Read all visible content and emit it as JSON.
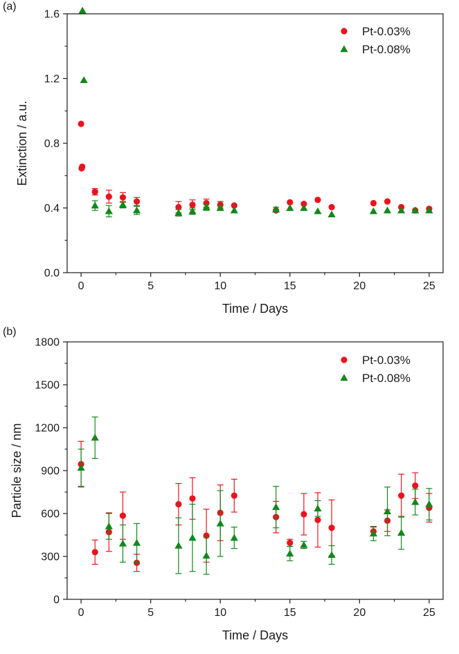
{
  "colors": {
    "pt003": "#e8141e",
    "pt008": "#13871b",
    "axis": "#1a1a1a"
  },
  "chart_data": [
    {
      "type": "scatter",
      "panel_label": "(a)",
      "title": "",
      "xlabel": "Time / Days",
      "ylabel": "Extinction / a.u.",
      "xlim": [
        -1,
        26
      ],
      "ylim": [
        0,
        1.6
      ],
      "xticks": [
        0,
        5,
        10,
        15,
        20,
        25
      ],
      "xtick_labels": [
        "0",
        "5",
        "10",
        "15",
        "20",
        "25"
      ],
      "yticks": [
        0,
        0.4,
        0.8,
        1.2,
        1.6
      ],
      "ytick_labels": [
        "0.0",
        "0.4",
        "0.8",
        "1.2",
        "1.6"
      ],
      "legend_position": "top-right",
      "series": [
        {
          "name": "Pt-0.03%",
          "marker": "circle",
          "color": "#e8141e",
          "x": [
            0,
            0.04,
            0.08,
            1,
            2,
            3,
            4,
            7,
            8,
            9,
            10,
            11,
            14,
            15,
            16,
            17,
            18,
            21,
            22,
            23,
            24,
            25
          ],
          "y": [
            0.92,
            0.645,
            0.655,
            0.5,
            0.47,
            0.465,
            0.44,
            0.405,
            0.42,
            0.43,
            0.42,
            0.415,
            0.385,
            0.435,
            0.425,
            0.45,
            0.405,
            0.43,
            0.44,
            0.405,
            0.385,
            0.395
          ],
          "err": [
            0,
            0,
            0,
            0.02,
            0.04,
            0.03,
            0.025,
            0.035,
            0.03,
            0.025,
            0.02,
            0,
            0,
            0,
            0,
            0,
            0,
            0,
            0,
            0,
            0,
            0
          ]
        },
        {
          "name": "Pt-0.08%",
          "marker": "triangle",
          "color": "#13871b",
          "x": [
            0.1,
            0.2,
            1,
            2,
            3,
            4,
            7,
            8,
            9,
            10,
            11,
            14,
            15,
            16,
            17,
            18,
            21,
            22,
            23,
            24,
            25
          ],
          "y": [
            1.62,
            1.19,
            0.415,
            0.38,
            0.42,
            0.385,
            0.37,
            0.38,
            0.405,
            0.4,
            0.385,
            0.39,
            0.4,
            0.4,
            0.38,
            0.36,
            0.38,
            0.385,
            0.385,
            0.385,
            0.385
          ],
          "err": [
            0,
            0,
            0.03,
            0.035,
            0.02,
            0.025,
            0.02,
            0.02,
            0.02,
            0.015,
            0,
            0.015,
            0,
            0,
            0,
            0,
            0,
            0,
            0,
            0,
            0
          ]
        }
      ]
    },
    {
      "type": "scatter",
      "panel_label": "(b)",
      "title": "",
      "xlabel": "Time / Days",
      "ylabel": "Particle size / nm",
      "xlim": [
        -1,
        26
      ],
      "ylim": [
        0,
        1800
      ],
      "xticks": [
        0,
        5,
        10,
        15,
        20,
        25
      ],
      "xtick_labels": [
        "0",
        "5",
        "10",
        "15",
        "20",
        "25"
      ],
      "yticks": [
        0,
        300,
        600,
        900,
        1200,
        1500,
        1800
      ],
      "ytick_labels": [
        "0",
        "300",
        "600",
        "900",
        "1200",
        "1500",
        "1800"
      ],
      "legend_position": "top-right",
      "series": [
        {
          "name": "Pt-0.03%",
          "marker": "circle",
          "color": "#e8141e",
          "x": [
            0,
            1,
            2,
            3,
            4,
            7,
            8,
            9,
            10,
            11,
            14,
            15,
            16,
            17,
            18,
            21,
            22,
            23,
            24,
            25
          ],
          "y": [
            945,
            330,
            470,
            585,
            255,
            665,
            705,
            445,
            605,
            725,
            575,
            395,
            595,
            555,
            500,
            475,
            550,
            725,
            795,
            640
          ],
          "err": [
            160,
            85,
            135,
            165,
            60,
            145,
            145,
            185,
            195,
            115,
            110,
            25,
            145,
            190,
            195,
            30,
            75,
            150,
            90,
            100
          ]
        },
        {
          "name": "Pt-0.08%",
          "marker": "triangle",
          "color": "#13871b",
          "x": [
            0,
            1,
            2,
            3,
            4,
            7,
            8,
            9,
            10,
            11,
            14,
            15,
            16,
            17,
            18,
            21,
            22,
            23,
            24,
            25
          ],
          "y": [
            920,
            1130,
            510,
            390,
            395,
            375,
            430,
            305,
            530,
            430,
            645,
            320,
            380,
            635,
            310,
            460,
            615,
            465,
            680,
            665
          ],
          "err": [
            130,
            145,
            90,
            130,
            135,
            195,
            235,
            130,
            230,
            75,
            145,
            50,
            25,
            55,
            65,
            50,
            170,
            115,
            90,
            110
          ]
        }
      ]
    }
  ]
}
